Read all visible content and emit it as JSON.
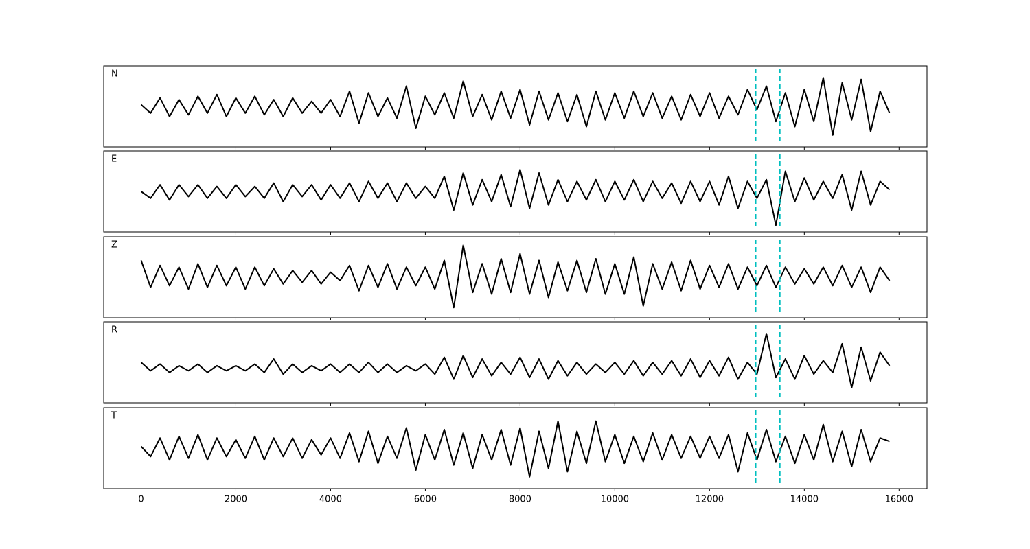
{
  "chart_data": {
    "type": "line",
    "x": [
      0,
      200,
      400,
      600,
      800,
      1000,
      1200,
      1400,
      1600,
      1800,
      2000,
      2200,
      2400,
      2600,
      2800,
      3000,
      3200,
      3400,
      3600,
      3800,
      4000,
      4200,
      4400,
      4600,
      4800,
      5000,
      5200,
      5400,
      5600,
      5800,
      6000,
      6200,
      6400,
      6600,
      6800,
      7000,
      7200,
      7400,
      7600,
      7800,
      8000,
      8200,
      8400,
      8600,
      8800,
      9000,
      9200,
      9400,
      9600,
      9800,
      10000,
      10200,
      10400,
      10600,
      10800,
      11000,
      11200,
      11400,
      11600,
      11800,
      12000,
      12200,
      12400,
      12600,
      12800,
      13000,
      13200,
      13400,
      13600,
      13800,
      14000,
      14200,
      14400,
      14600,
      14800,
      15000,
      15200,
      15400,
      15600,
      15800
    ],
    "xlim": [
      -790,
      16590
    ],
    "xticks": [
      0,
      2000,
      4000,
      6000,
      8000,
      10000,
      12000,
      14000,
      16000
    ],
    "ylim": [
      -1.2,
      1.2
    ],
    "series": [
      {
        "name": "N",
        "color": "#000000",
        "values": [
          0.05,
          -0.2,
          0.25,
          -0.3,
          0.2,
          -0.25,
          0.3,
          -0.2,
          0.35,
          -0.3,
          0.25,
          -0.2,
          0.3,
          -0.25,
          0.2,
          -0.3,
          0.25,
          -0.2,
          0.15,
          -0.2,
          0.2,
          -0.3,
          0.45,
          -0.5,
          0.4,
          -0.3,
          0.25,
          -0.35,
          0.6,
          -0.65,
          0.3,
          -0.25,
          0.4,
          -0.35,
          0.75,
          -0.3,
          0.35,
          -0.4,
          0.45,
          -0.35,
          0.5,
          -0.55,
          0.45,
          -0.4,
          0.4,
          -0.45,
          0.35,
          -0.6,
          0.45,
          -0.4,
          0.4,
          -0.35,
          0.45,
          -0.3,
          0.4,
          -0.35,
          0.3,
          -0.4,
          0.35,
          -0.3,
          0.4,
          -0.35,
          0.3,
          -0.25,
          0.5,
          -0.1,
          0.6,
          -0.45,
          0.4,
          -0.6,
          0.5,
          -0.45,
          0.85,
          -0.85,
          0.7,
          -0.4,
          0.8,
          -0.75,
          0.45,
          -0.2
        ]
      },
      {
        "name": "E",
        "color": "#000000",
        "values": [
          0.0,
          -0.2,
          0.2,
          -0.25,
          0.2,
          -0.15,
          0.2,
          -0.2,
          0.15,
          -0.2,
          0.2,
          -0.15,
          0.15,
          -0.2,
          0.25,
          -0.3,
          0.2,
          -0.15,
          0.2,
          -0.25,
          0.2,
          -0.2,
          0.25,
          -0.3,
          0.3,
          -0.2,
          0.25,
          -0.3,
          0.25,
          -0.2,
          0.15,
          -0.2,
          0.45,
          -0.55,
          0.55,
          -0.4,
          0.35,
          -0.3,
          0.5,
          -0.45,
          0.65,
          -0.5,
          0.55,
          -0.4,
          0.35,
          -0.3,
          0.3,
          -0.25,
          0.35,
          -0.3,
          0.3,
          -0.25,
          0.35,
          -0.3,
          0.3,
          -0.2,
          0.25,
          -0.35,
          0.3,
          -0.3,
          0.3,
          -0.4,
          0.45,
          -0.5,
          0.3,
          -0.2,
          0.35,
          -1.0,
          0.6,
          -0.3,
          0.4,
          -0.25,
          0.3,
          -0.2,
          0.5,
          -0.55,
          0.6,
          -0.4,
          0.3,
          0.05
        ]
      },
      {
        "name": "Z",
        "color": "#000000",
        "values": [
          0.5,
          -0.3,
          0.35,
          -0.25,
          0.3,
          -0.35,
          0.4,
          -0.3,
          0.35,
          -0.25,
          0.3,
          -0.35,
          0.3,
          -0.25,
          0.25,
          -0.2,
          0.2,
          -0.15,
          0.2,
          -0.2,
          0.15,
          -0.1,
          0.35,
          -0.4,
          0.35,
          -0.3,
          0.4,
          -0.35,
          0.3,
          -0.25,
          0.3,
          -0.35,
          0.5,
          -0.9,
          0.95,
          -0.45,
          0.4,
          -0.5,
          0.55,
          -0.45,
          0.7,
          -0.5,
          0.5,
          -0.6,
          0.45,
          -0.4,
          0.5,
          -0.45,
          0.55,
          -0.5,
          0.4,
          -0.5,
          0.6,
          -0.85,
          0.4,
          -0.35,
          0.45,
          -0.4,
          0.5,
          -0.35,
          0.35,
          -0.3,
          0.4,
          -0.35,
          0.3,
          -0.25,
          0.35,
          -0.3,
          0.3,
          -0.2,
          0.25,
          -0.2,
          0.3,
          -0.25,
          0.35,
          -0.3,
          0.3,
          -0.45,
          0.3,
          -0.1
        ]
      },
      {
        "name": "R",
        "color": "#000000",
        "values": [
          0.0,
          -0.25,
          -0.05,
          -0.3,
          -0.1,
          -0.25,
          -0.05,
          -0.3,
          -0.1,
          -0.25,
          -0.1,
          -0.25,
          -0.05,
          -0.3,
          0.1,
          -0.35,
          -0.05,
          -0.3,
          -0.1,
          -0.25,
          -0.05,
          -0.3,
          -0.05,
          -0.3,
          0.0,
          -0.3,
          -0.05,
          -0.3,
          -0.1,
          -0.25,
          -0.05,
          -0.35,
          0.15,
          -0.5,
          0.2,
          -0.45,
          0.1,
          -0.4,
          0.0,
          -0.35,
          0.15,
          -0.45,
          0.1,
          -0.5,
          0.05,
          -0.4,
          0.0,
          -0.35,
          -0.05,
          -0.3,
          0.0,
          -0.35,
          0.05,
          -0.4,
          0.0,
          -0.35,
          0.05,
          -0.4,
          0.1,
          -0.45,
          0.05,
          -0.4,
          0.15,
          -0.5,
          0.0,
          -0.35,
          0.85,
          -0.45,
          0.1,
          -0.5,
          0.2,
          -0.35,
          0.05,
          -0.3,
          0.55,
          -0.75,
          0.45,
          -0.55,
          0.3,
          -0.1
        ]
      },
      {
        "name": "T",
        "color": "#000000",
        "values": [
          0.05,
          -0.25,
          0.3,
          -0.35,
          0.35,
          -0.3,
          0.4,
          -0.35,
          0.3,
          -0.25,
          0.25,
          -0.3,
          0.35,
          -0.35,
          0.3,
          -0.25,
          0.3,
          -0.3,
          0.25,
          -0.2,
          0.3,
          -0.3,
          0.45,
          -0.4,
          0.5,
          -0.45,
          0.35,
          -0.3,
          0.6,
          -0.65,
          0.4,
          -0.35,
          0.55,
          -0.5,
          0.45,
          -0.6,
          0.4,
          -0.35,
          0.55,
          -0.5,
          0.6,
          -0.85,
          0.5,
          -0.6,
          0.8,
          -0.7,
          0.5,
          -0.45,
          0.8,
          -0.4,
          0.4,
          -0.45,
          0.35,
          -0.4,
          0.45,
          -0.35,
          0.4,
          -0.3,
          0.35,
          -0.3,
          0.35,
          -0.3,
          0.4,
          -0.7,
          0.45,
          -0.35,
          0.55,
          -0.4,
          0.35,
          -0.45,
          0.4,
          -0.35,
          0.7,
          -0.4,
          0.5,
          -0.55,
          0.55,
          -0.4,
          0.3,
          0.2
        ]
      }
    ],
    "vlines": [
      12970,
      13480
    ],
    "vline_color": "#00bfbf"
  }
}
